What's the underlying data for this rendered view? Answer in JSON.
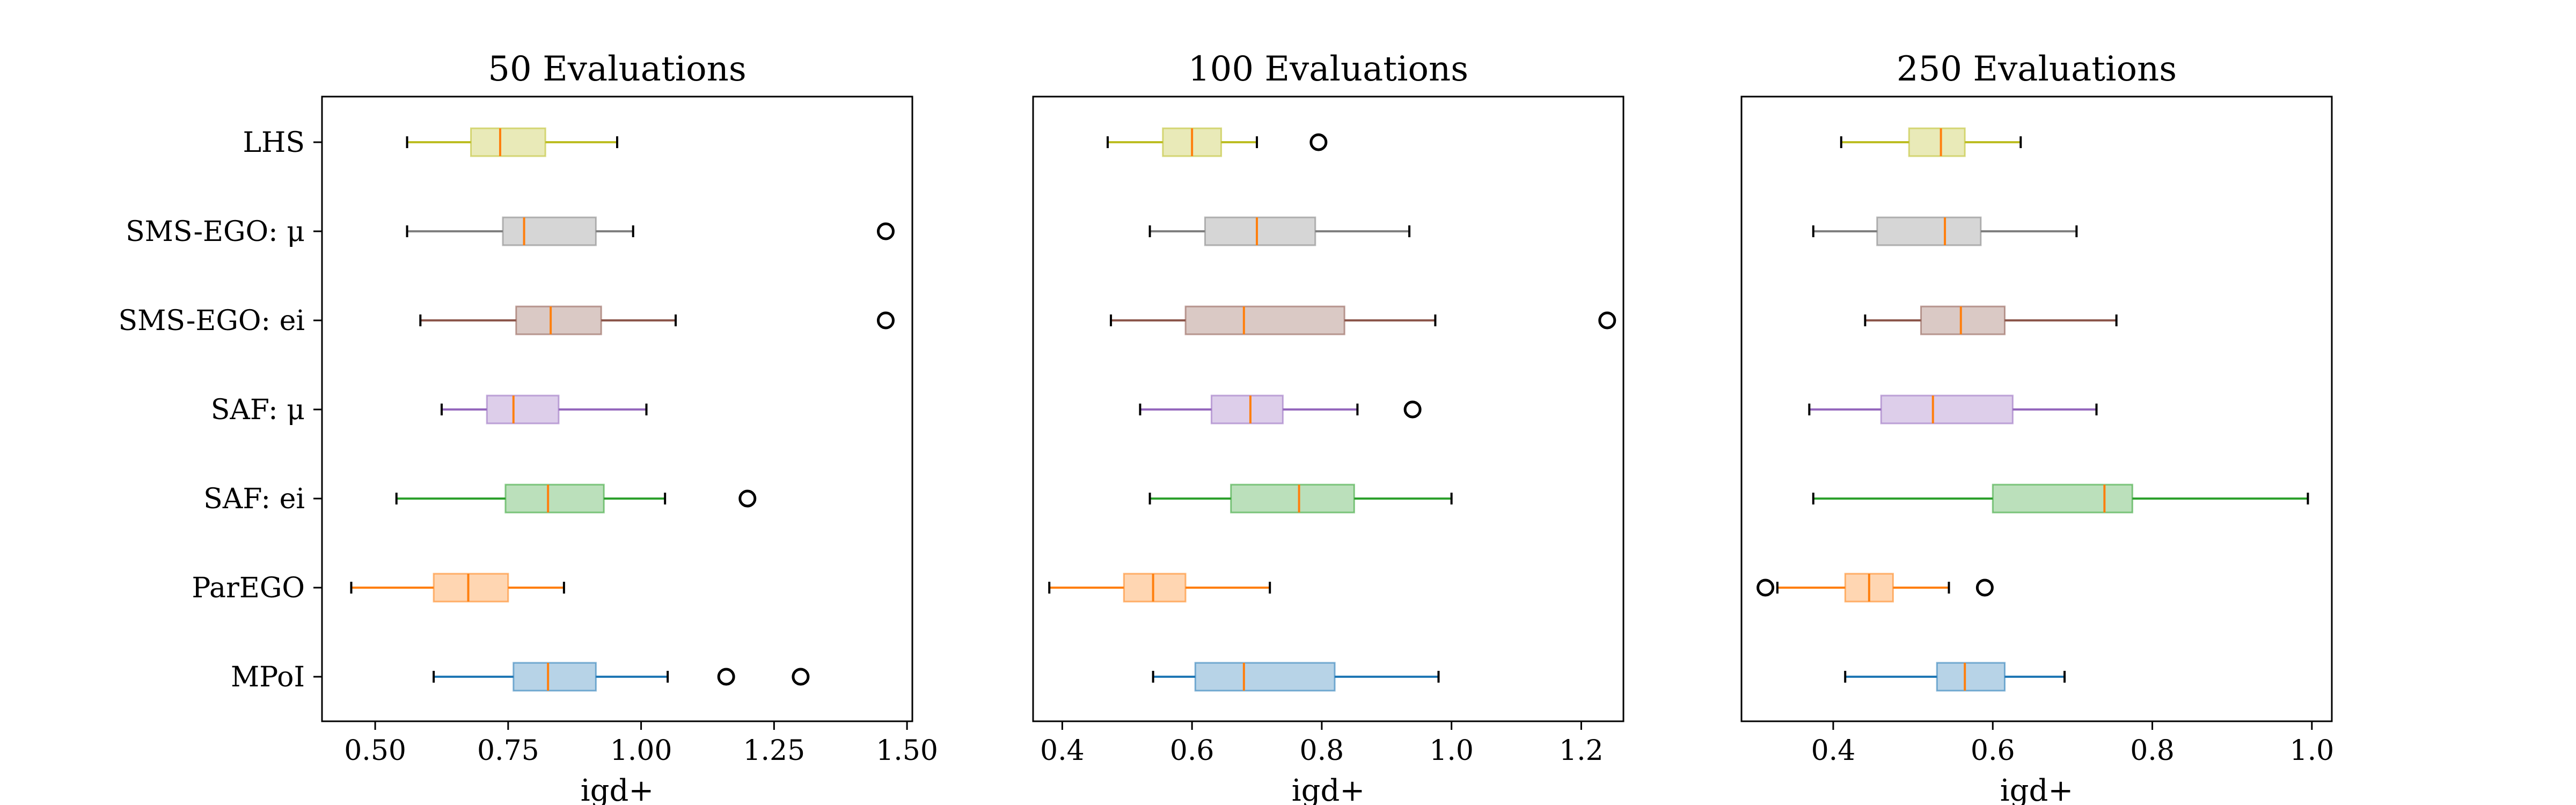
{
  "chart_data": [
    {
      "type": "box",
      "orientation": "horizontal",
      "title": "50 Evaluations",
      "xlabel": "igd+",
      "ylabel": "",
      "xlim": [
        0.4,
        1.51
      ],
      "xticks": [
        0.5,
        0.75,
        1.0,
        1.25,
        1.5
      ],
      "xtick_labels": [
        "0.50",
        "0.75",
        "1.00",
        "1.25",
        "1.50"
      ],
      "grid": false,
      "categories": [
        "LHS",
        "SMS-EGO: μ",
        "SMS-EGO: ei",
        "SAF: μ",
        "SAF: ei",
        "ParEGO",
        "MPoI"
      ],
      "boxes": [
        {
          "whislo": 0.56,
          "q1": 0.68,
          "med": 0.735,
          "q3": 0.82,
          "whishi": 0.955,
          "fliers": []
        },
        {
          "whislo": 0.56,
          "q1": 0.74,
          "med": 0.78,
          "q3": 0.915,
          "whishi": 0.985,
          "fliers": [
            1.46
          ]
        },
        {
          "whislo": 0.585,
          "q1": 0.765,
          "med": 0.83,
          "q3": 0.925,
          "whishi": 1.065,
          "fliers": [
            1.46
          ]
        },
        {
          "whislo": 0.625,
          "q1": 0.71,
          "med": 0.76,
          "q3": 0.845,
          "whishi": 1.01,
          "fliers": []
        },
        {
          "whislo": 0.54,
          "q1": 0.745,
          "med": 0.825,
          "q3": 0.93,
          "whishi": 1.045,
          "fliers": [
            1.2
          ]
        },
        {
          "whislo": 0.455,
          "q1": 0.61,
          "med": 0.675,
          "q3": 0.75,
          "whishi": 0.855,
          "fliers": []
        },
        {
          "whislo": 0.61,
          "q1": 0.76,
          "med": 0.825,
          "q3": 0.915,
          "whishi": 1.05,
          "fliers": [
            1.16,
            1.3
          ]
        }
      ]
    },
    {
      "type": "box",
      "orientation": "horizontal",
      "title": "100 Evaluations",
      "xlabel": "igd+",
      "ylabel": "",
      "xlim": [
        0.355,
        1.265
      ],
      "xticks": [
        0.4,
        0.6,
        0.8,
        1.0,
        1.2
      ],
      "xtick_labels": [
        "0.4",
        "0.6",
        "0.8",
        "1.0",
        "1.2"
      ],
      "grid": false,
      "categories": [
        "LHS",
        "SMS-EGO: μ",
        "SMS-EGO: ei",
        "SAF: μ",
        "SAF: ei",
        "ParEGO",
        "MPoI"
      ],
      "boxes": [
        {
          "whislo": 0.47,
          "q1": 0.555,
          "med": 0.6,
          "q3": 0.645,
          "whishi": 0.7,
          "fliers": [
            0.795
          ]
        },
        {
          "whislo": 0.535,
          "q1": 0.62,
          "med": 0.7,
          "q3": 0.79,
          "whishi": 0.935,
          "fliers": []
        },
        {
          "whislo": 0.475,
          "q1": 0.59,
          "med": 0.68,
          "q3": 0.835,
          "whishi": 0.975,
          "fliers": [
            1.24
          ]
        },
        {
          "whislo": 0.52,
          "q1": 0.63,
          "med": 0.69,
          "q3": 0.74,
          "whishi": 0.855,
          "fliers": [
            0.94
          ]
        },
        {
          "whislo": 0.535,
          "q1": 0.66,
          "med": 0.765,
          "q3": 0.85,
          "whishi": 1.0,
          "fliers": []
        },
        {
          "whislo": 0.38,
          "q1": 0.495,
          "med": 0.54,
          "q3": 0.59,
          "whishi": 0.72,
          "fliers": []
        },
        {
          "whislo": 0.54,
          "q1": 0.605,
          "med": 0.68,
          "q3": 0.82,
          "whishi": 0.98,
          "fliers": []
        }
      ]
    },
    {
      "type": "box",
      "orientation": "horizontal",
      "title": "250 Evaluations",
      "xlabel": "igd+",
      "ylabel": "",
      "xlim": [
        0.285,
        1.025
      ],
      "xticks": [
        0.4,
        0.6,
        0.8,
        1.0
      ],
      "xtick_labels": [
        "0.4",
        "0.6",
        "0.8",
        "1.0"
      ],
      "grid": false,
      "categories": [
        "LHS",
        "SMS-EGO: μ",
        "SMS-EGO: ei",
        "SAF: μ",
        "SAF: ei",
        "ParEGO",
        "MPoI"
      ],
      "boxes": [
        {
          "whislo": 0.41,
          "q1": 0.495,
          "med": 0.535,
          "q3": 0.565,
          "whishi": 0.635,
          "fliers": []
        },
        {
          "whislo": 0.375,
          "q1": 0.455,
          "med": 0.54,
          "q3": 0.585,
          "whishi": 0.705,
          "fliers": []
        },
        {
          "whislo": 0.44,
          "q1": 0.51,
          "med": 0.56,
          "q3": 0.615,
          "whishi": 0.755,
          "fliers": []
        },
        {
          "whislo": 0.37,
          "q1": 0.46,
          "med": 0.525,
          "q3": 0.625,
          "whishi": 0.73,
          "fliers": []
        },
        {
          "whislo": 0.375,
          "q1": 0.6,
          "med": 0.74,
          "q3": 0.775,
          "whishi": 0.995,
          "fliers": []
        },
        {
          "whislo": 0.33,
          "q1": 0.415,
          "med": 0.445,
          "q3": 0.475,
          "whishi": 0.545,
          "fliers": [
            0.315,
            0.59
          ]
        },
        {
          "whislo": 0.415,
          "q1": 0.53,
          "med": 0.565,
          "q3": 0.615,
          "whishi": 0.69,
          "fliers": []
        }
      ]
    }
  ],
  "style": {
    "series_colors": [
      "#bcbd22",
      "#7f7f7f",
      "#8c564b",
      "#9467bd",
      "#2ca02c",
      "#ff7f0e",
      "#1f77b4"
    ],
    "median_color": "#ff7f0e",
    "axis_color": "#000000",
    "background": "#ffffff"
  }
}
